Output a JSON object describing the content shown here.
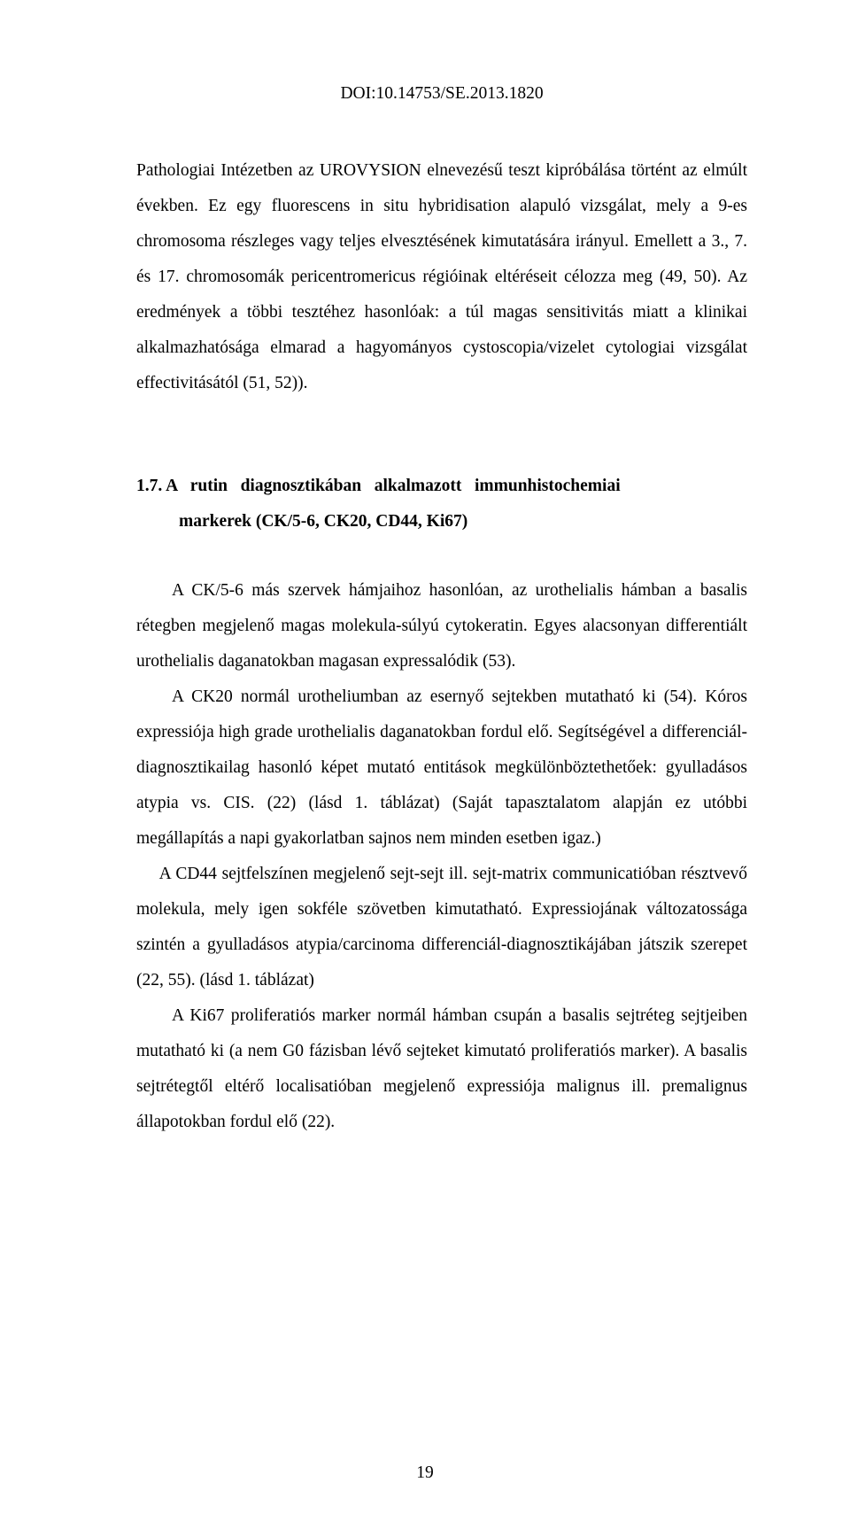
{
  "doi": "DOI:10.14753/SE.2013.1820",
  "para1": "Pathologiai Intézetben az UROVYSION elnevezésű teszt kipróbálása történt az elmúlt években. Ez egy fluorescens in situ hybridisation alapuló vizsgálat, mely a 9-es chromosoma részleges vagy teljes elvesztésének kimutatására irányul. Emellett a 3., 7. és 17. chromosomák pericentromericus régióinak eltéréseit célozza meg (49, 50). Az eredmények a többi tesztéhez hasonlóak: a túl magas sensitivitás miatt a klinikai alkalmazhatósága elmarad a hagyományos cystoscopia/vizelet cytologiai vizsgálat effectivitásától (51, 52)).",
  "section": {
    "number": "1.7.",
    "title_part1": "A   rutin   diagnosztikában   alkalmazott   immunhistochemiai",
    "title_part2": "markerek  (CK/5-6, CK20, CD44, Ki67)"
  },
  "para2": "A CK/5-6 más szervek hámjaihoz hasonlóan, az urothelialis hámban a basalis rétegben megjelenő magas molekula-súlyú cytokeratin. Egyes alacsonyan differentiált urothelialis daganatokban magasan expressalódik (53).",
  "para3": "A CK20 normál urotheliumban az esernyő sejtekben mutatható ki (54). Kóros expressiója high grade urothelialis daganatokban fordul elő. Segítségével a differenciál-diagnosztikailag hasonló képet mutató entitások megkülönböztethetőek: gyulladásos atypia vs. CIS. (22) (lásd 1. táblázat) (Saját tapasztalatom alapján ez utóbbi megállapítás a napi gyakorlatban sajnos nem minden esetben igaz.)",
  "para4": " A CD44 sejtfelszínen megjelenő sejt-sejt ill. sejt-matrix communicatióban résztvevő molekula, mely igen sokféle szövetben kimutatható. Expressiojának változatossága szintén a gyulladásos atypia/carcinoma differenciál-diagnosztikájában játszik szerepet (22, 55). (lásd 1. táblázat)",
  "para5": "A Ki67 proliferatiós marker normál hámban csupán a basalis sejtréteg sejtjeiben mutatható ki (a nem G0 fázisban lévő sejteket kimutató proliferatiós marker). A basalis sejtrétegtől eltérő localisatióban megjelenő expressiója malignus ill. premalignus állapotokban fordul elő (22).",
  "page_number": "19"
}
